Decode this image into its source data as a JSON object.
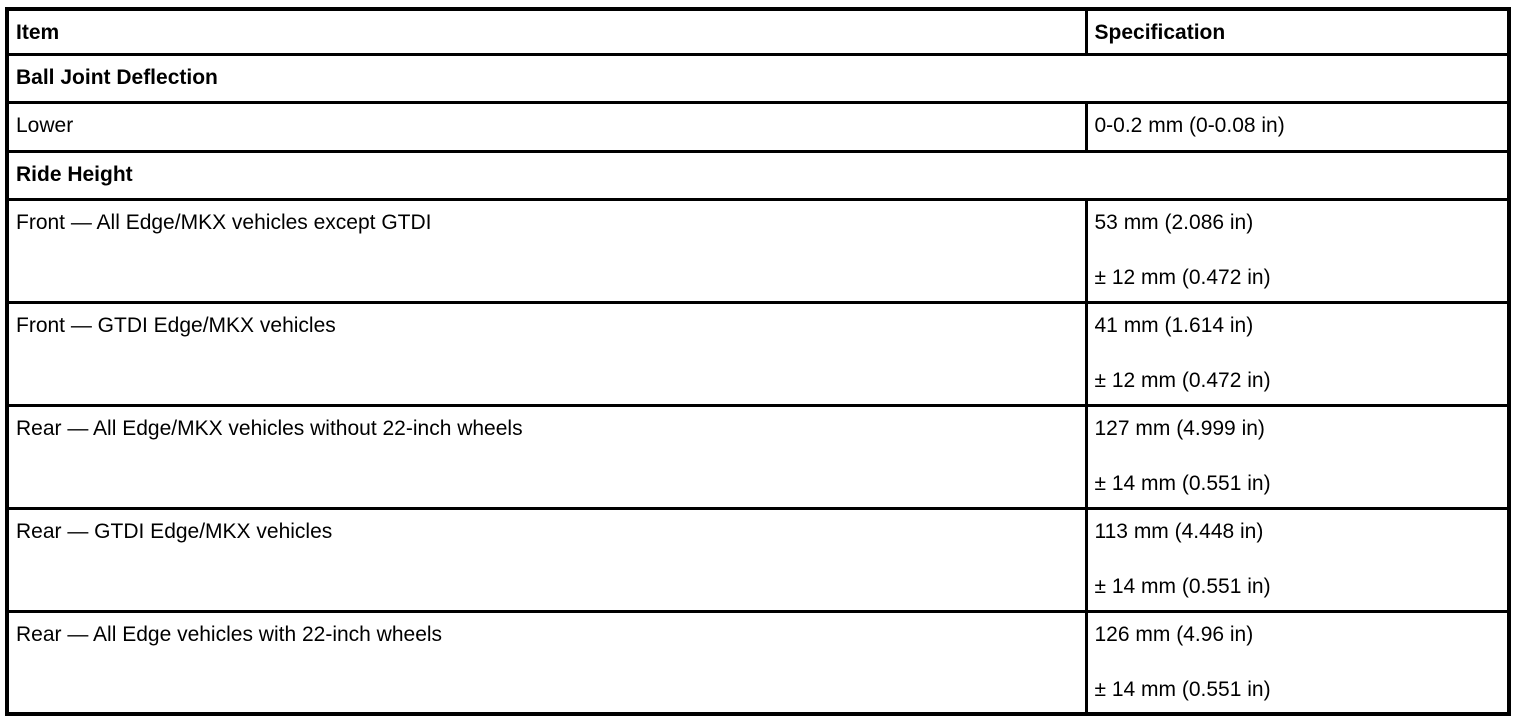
{
  "colors": {
    "background": "#ffffff",
    "border": "#000000",
    "text": "#000000"
  },
  "table": {
    "columns": [
      {
        "label": "Item"
      },
      {
        "label": "Specification"
      }
    ],
    "rows": [
      {
        "type": "section",
        "item": "Ball Joint Deflection"
      },
      {
        "type": "data",
        "item": "Lower",
        "spec": [
          "0-0.2 mm (0-0.08 in)"
        ]
      },
      {
        "type": "section",
        "item": "Ride Height"
      },
      {
        "type": "data",
        "item": "Front — All Edge/MKX vehicles except GTDI",
        "spec": [
          "53 mm (2.086 in)",
          "± 12 mm (0.472 in)"
        ]
      },
      {
        "type": "data",
        "item": "Front — GTDI Edge/MKX vehicles",
        "spec": [
          "41 mm (1.614 in)",
          "± 12 mm (0.472 in)"
        ]
      },
      {
        "type": "data",
        "item": "Rear — All Edge/MKX vehicles without 22-inch wheels",
        "spec": [
          "127 mm (4.999 in)",
          "± 14 mm (0.551 in)"
        ]
      },
      {
        "type": "data",
        "item": "Rear — GTDI Edge/MKX vehicles",
        "spec": [
          "113 mm (4.448 in)",
          "± 14 mm (0.551 in)"
        ]
      },
      {
        "type": "data",
        "item": "Rear — All Edge vehicles with 22-inch wheels",
        "spec": [
          "126 mm (4.96 in)",
          "± 14 mm (0.551 in)"
        ]
      }
    ]
  }
}
